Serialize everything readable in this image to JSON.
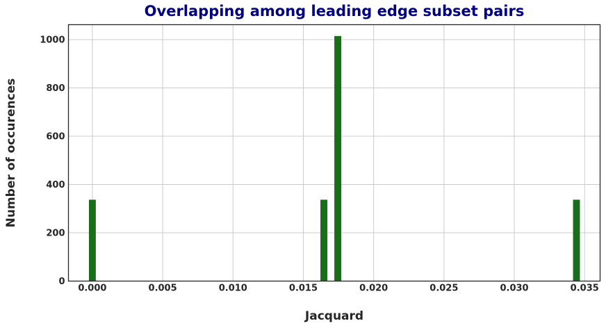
{
  "chart_data": {
    "type": "bar",
    "title": "Overlapping among leading edge subset pairs",
    "xlabel": "Jacquard",
    "ylabel": "Number of occurences",
    "x": [
      0.0,
      0.01646,
      0.01745,
      0.03442
    ],
    "values": [
      337,
      337,
      1015,
      337
    ],
    "bin_width": 0.00049,
    "xlim": [
      -0.0017,
      0.0361
    ],
    "ylim": [
      0,
      1062
    ],
    "xticks": [
      0.0,
      0.005,
      0.01,
      0.015,
      0.02,
      0.025,
      0.03,
      0.035
    ],
    "xtick_labels": [
      "0.000",
      "0.005",
      "0.010",
      "0.015",
      "0.020",
      "0.025",
      "0.030",
      "0.035"
    ],
    "yticks": [
      0,
      200,
      400,
      600,
      800,
      1000
    ],
    "ytick_labels": [
      "0",
      "200",
      "400",
      "600",
      "800",
      "1000"
    ],
    "bar_color": "#1a6e1a",
    "title_color": "#000080",
    "grid": true,
    "legend": "none"
  }
}
